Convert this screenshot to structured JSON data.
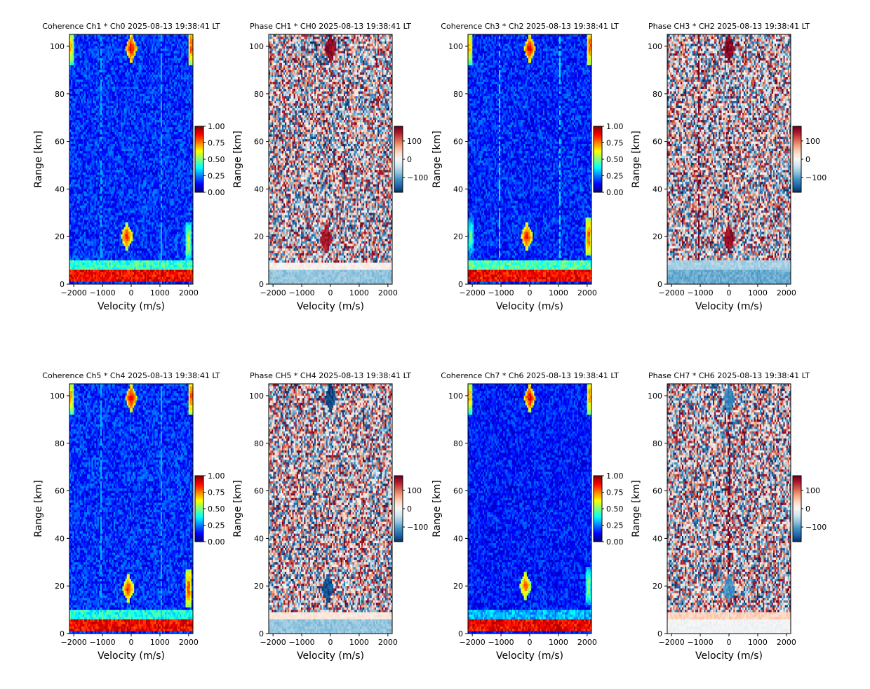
{
  "figure": {
    "background": "#ffffff"
  },
  "chart_data": [
    {
      "type": "heatmap",
      "kind": "coherence",
      "colormap": "jet",
      "title": "Coherence Ch1 * Ch0 2025-08-13 19:38:41 LT",
      "xlabel": "Velocity (m/s)",
      "ylabel": "Range [km]",
      "xlim": [
        -2150,
        2150
      ],
      "ylim": [
        0,
        105
      ],
      "xticks": [
        -2000,
        -1000,
        0,
        1000,
        2000
      ],
      "xtick_labels": [
        "−2000",
        "−1000",
        "0",
        "1000",
        "2000"
      ],
      "yticks": [
        0,
        20,
        40,
        60,
        80,
        100
      ],
      "ytick_labels": [
        "0",
        "20",
        "40",
        "60",
        "80",
        "100"
      ],
      "colorbar": {
        "range": [
          0,
          1
        ],
        "ticks": [
          0,
          0.25,
          0.5,
          0.75,
          1
        ],
        "labels": [
          "0.00",
          "0.25",
          "0.50",
          "0.75",
          "1.00"
        ]
      },
      "features": [
        {
          "v": 0,
          "r": 99,
          "value": 0.95,
          "shape": "diamond"
        },
        {
          "v": -150,
          "r": 20,
          "value": 0.9,
          "shape": "diamond"
        },
        {
          "v": 2100,
          "r": 100,
          "value": 0.85,
          "shape": "edge"
        },
        {
          "v": -2100,
          "r": 100,
          "value": 0.75,
          "shape": "edge"
        },
        {
          "v": 2000,
          "r": 18,
          "value": 0.65,
          "shape": "edge"
        }
      ],
      "bands": [
        {
          "r0": 1,
          "r1": 6,
          "value": 0.88
        },
        {
          "r0": 6,
          "r1": 10,
          "value": 0.42
        }
      ],
      "stripes": [
        {
          "v": -1050,
          "value": 0.3
        },
        {
          "v": 1050,
          "value": 0.3
        }
      ],
      "noise": {
        "base": 0.13,
        "spread": 0.12
      }
    },
    {
      "type": "heatmap",
      "kind": "phase",
      "colormap": "RdBu_r",
      "title": "Phase CH1 * CH0 2025-08-13 19:38:41 LT",
      "xlabel": "Velocity (m/s)",
      "ylabel": "Range [km]",
      "xlim": [
        -2150,
        2150
      ],
      "ylim": [
        0,
        105
      ],
      "xticks": [
        -2000,
        -1000,
        0,
        1000,
        2000
      ],
      "xtick_labels": [
        "−2000",
        "−1000",
        "0",
        "1000",
        "2000"
      ],
      "yticks": [
        0,
        20,
        40,
        60,
        80,
        100
      ],
      "ytick_labels": [
        "0",
        "20",
        "40",
        "60",
        "80",
        "100"
      ],
      "colorbar": {
        "range": [
          -180,
          180
        ],
        "ticks": [
          -100,
          0,
          100
        ],
        "labels": [
          "−100",
          "0",
          "100"
        ]
      },
      "features": [
        {
          "v": 0,
          "r": 99,
          "value": 160,
          "shape": "diamond"
        },
        {
          "v": -150,
          "r": 19,
          "value": 150,
          "shape": "diamond"
        }
      ],
      "bands": [
        {
          "r0": 0,
          "r1": 6,
          "value": -70
        },
        {
          "r0": 6,
          "r1": 9,
          "value": 10
        }
      ],
      "stripes": [],
      "noise": {
        "base": 0,
        "spread": 180
      }
    },
    {
      "type": "heatmap",
      "kind": "coherence",
      "colormap": "jet",
      "title": "Coherence Ch3 * Ch2 2025-08-13 19:38:41 LT",
      "xlabel": "Velocity (m/s)",
      "ylabel": "Range [km]",
      "xlim": [
        -2150,
        2150
      ],
      "ylim": [
        0,
        105
      ],
      "xticks": [
        -2000,
        -1000,
        0,
        1000,
        2000
      ],
      "xtick_labels": [
        "−2000",
        "−1000",
        "0",
        "1000",
        "2000"
      ],
      "yticks": [
        0,
        20,
        40,
        60,
        80,
        100
      ],
      "ytick_labels": [
        "0",
        "20",
        "40",
        "60",
        "80",
        "100"
      ],
      "colorbar": {
        "range": [
          0,
          1
        ],
        "ticks": [
          0,
          0.25,
          0.5,
          0.75,
          1
        ],
        "labels": [
          "0.00",
          "0.25",
          "0.50",
          "0.75",
          "1.00"
        ]
      },
      "features": [
        {
          "v": 0,
          "r": 99,
          "value": 0.95,
          "shape": "diamond"
        },
        {
          "v": -100,
          "r": 20,
          "value": 0.92,
          "shape": "diamond"
        },
        {
          "v": 2100,
          "r": 100,
          "value": 0.85,
          "shape": "edge"
        },
        {
          "v": -2100,
          "r": 100,
          "value": 0.75,
          "shape": "edge"
        },
        {
          "v": 2050,
          "r": 20,
          "value": 0.85,
          "shape": "edge"
        },
        {
          "v": -2050,
          "r": 20,
          "value": 0.55,
          "shape": "edge"
        }
      ],
      "bands": [
        {
          "r0": 1,
          "r1": 6,
          "value": 0.88
        },
        {
          "r0": 6,
          "r1": 10,
          "value": 0.45
        }
      ],
      "stripes": [
        {
          "v": -1050,
          "value": 0.35
        },
        {
          "v": 1050,
          "value": 0.35
        }
      ],
      "noise": {
        "base": 0.12,
        "spread": 0.12
      }
    },
    {
      "type": "heatmap",
      "kind": "phase",
      "colormap": "RdBu_r",
      "title": "Phase CH3 * CH2 2025-08-13 19:38:41 LT",
      "xlabel": "Velocity (m/s)",
      "ylabel": "Range [km]",
      "xlim": [
        -2150,
        2150
      ],
      "ylim": [
        0,
        105
      ],
      "xticks": [
        -2000,
        -1000,
        0,
        1000,
        2000
      ],
      "xtick_labels": [
        "−2000",
        "−1000",
        "0",
        "1000",
        "2000"
      ],
      "yticks": [
        0,
        20,
        40,
        60,
        80,
        100
      ],
      "ytick_labels": [
        "0",
        "20",
        "40",
        "60",
        "80",
        "100"
      ],
      "colorbar": {
        "range": [
          -180,
          180
        ],
        "ticks": [
          -100,
          0,
          100
        ],
        "labels": [
          "−100",
          "0",
          "100"
        ]
      },
      "features": [
        {
          "v": 0,
          "r": 99,
          "value": 165,
          "shape": "diamond"
        },
        {
          "v": 0,
          "r": 19,
          "value": 160,
          "shape": "diamond"
        }
      ],
      "bands": [
        {
          "r0": 0,
          "r1": 6,
          "value": -90
        },
        {
          "r0": 6,
          "r1": 10,
          "value": -60
        }
      ],
      "stripes": [
        {
          "v": -1050,
          "value": 170
        }
      ],
      "noise": {
        "base": 0,
        "spread": 180
      }
    },
    {
      "type": "heatmap",
      "kind": "coherence",
      "colormap": "jet",
      "title": "Coherence Ch5 * Ch4 2025-08-13 19:38:41 LT",
      "xlabel": "Velocity (m/s)",
      "ylabel": "Range [km]",
      "xlim": [
        -2150,
        2150
      ],
      "ylim": [
        0,
        105
      ],
      "xticks": [
        -2000,
        -1000,
        0,
        1000,
        2000
      ],
      "xtick_labels": [
        "−2000",
        "−1000",
        "0",
        "1000",
        "2000"
      ],
      "yticks": [
        0,
        20,
        40,
        60,
        80,
        100
      ],
      "ytick_labels": [
        "0",
        "20",
        "40",
        "60",
        "80",
        "100"
      ],
      "colorbar": {
        "range": [
          0,
          1
        ],
        "ticks": [
          0,
          0.25,
          0.5,
          0.75,
          1
        ],
        "labels": [
          "0.00",
          "0.25",
          "0.50",
          "0.75",
          "1.00"
        ]
      },
      "features": [
        {
          "v": 0,
          "r": 99,
          "value": 0.95,
          "shape": "diamond"
        },
        {
          "v": -100,
          "r": 19,
          "value": 0.9,
          "shape": "diamond"
        },
        {
          "v": 2100,
          "r": 100,
          "value": 0.85,
          "shape": "edge"
        },
        {
          "v": -2100,
          "r": 100,
          "value": 0.75,
          "shape": "edge"
        },
        {
          "v": 2000,
          "r": 19,
          "value": 0.85,
          "shape": "edge"
        }
      ],
      "bands": [
        {
          "r0": 1,
          "r1": 6,
          "value": 0.88
        },
        {
          "r0": 6,
          "r1": 10,
          "value": 0.4
        }
      ],
      "stripes": [
        {
          "v": -1050,
          "value": 0.3
        },
        {
          "v": 1050,
          "value": 0.3
        }
      ],
      "noise": {
        "base": 0.13,
        "spread": 0.12
      }
    },
    {
      "type": "heatmap",
      "kind": "phase",
      "colormap": "RdBu_r",
      "title": "Phase CH5 * CH4 2025-08-13 19:38:41 LT",
      "xlabel": "Velocity (m/s)",
      "ylabel": "Range [km]",
      "xlim": [
        -2150,
        2150
      ],
      "ylim": [
        0,
        105
      ],
      "xticks": [
        -2000,
        -1000,
        0,
        1000,
        2000
      ],
      "xtick_labels": [
        "−2000",
        "−1000",
        "0",
        "1000",
        "2000"
      ],
      "yticks": [
        0,
        20,
        40,
        60,
        80,
        100
      ],
      "ytick_labels": [
        "0",
        "20",
        "40",
        "60",
        "80",
        "100"
      ],
      "colorbar": {
        "range": [
          -180,
          180
        ],
        "ticks": [
          -100,
          0,
          100
        ],
        "labels": [
          "−100",
          "0",
          "100"
        ]
      },
      "features": [
        {
          "v": 0,
          "r": 99,
          "value": -165,
          "shape": "diamond"
        },
        {
          "v": -100,
          "r": 19,
          "value": -160,
          "shape": "diamond"
        }
      ],
      "bands": [
        {
          "r0": 0,
          "r1": 6,
          "value": -70
        },
        {
          "r0": 6,
          "r1": 9,
          "value": 20
        }
      ],
      "stripes": [],
      "noise": {
        "base": 0,
        "spread": 180
      }
    },
    {
      "type": "heatmap",
      "kind": "coherence",
      "colormap": "jet",
      "title": "Coherence Ch7 * Ch6 2025-08-13 19:38:41 LT",
      "xlabel": "Velocity (m/s)",
      "ylabel": "Range [km]",
      "xlim": [
        -2150,
        2150
      ],
      "ylim": [
        0,
        105
      ],
      "xticks": [
        -2000,
        -1000,
        0,
        1000,
        2000
      ],
      "xtick_labels": [
        "−2000",
        "−1000",
        "0",
        "1000",
        "2000"
      ],
      "yticks": [
        0,
        20,
        40,
        60,
        80,
        100
      ],
      "ytick_labels": [
        "0",
        "20",
        "40",
        "60",
        "80",
        "100"
      ],
      "colorbar": {
        "range": [
          0,
          1
        ],
        "ticks": [
          0,
          0.25,
          0.5,
          0.75,
          1
        ],
        "labels": [
          "0.00",
          "0.25",
          "0.50",
          "0.75",
          "1.00"
        ]
      },
      "features": [
        {
          "v": 0,
          "r": 99,
          "value": 0.95,
          "shape": "diamond"
        },
        {
          "v": -150,
          "r": 20,
          "value": 0.85,
          "shape": "diamond"
        },
        {
          "v": 2100,
          "r": 100,
          "value": 0.8,
          "shape": "edge"
        },
        {
          "v": -2100,
          "r": 100,
          "value": 0.75,
          "shape": "edge"
        },
        {
          "v": 2050,
          "r": 20,
          "value": 0.6,
          "shape": "edge"
        }
      ],
      "bands": [
        {
          "r0": 1,
          "r1": 6,
          "value": 0.88
        },
        {
          "r0": 6,
          "r1": 10,
          "value": 0.3
        }
      ],
      "stripes": [],
      "noise": {
        "base": 0.11,
        "spread": 0.11
      }
    },
    {
      "type": "heatmap",
      "kind": "phase",
      "colormap": "RdBu_r",
      "title": "Phase CH7 * CH6 2025-08-13 19:38:41 LT",
      "xlabel": "Velocity (m/s)",
      "ylabel": "Range [km]",
      "xlim": [
        -2150,
        2150
      ],
      "ylim": [
        0,
        105
      ],
      "xticks": [
        -2000,
        -1000,
        0,
        1000,
        2000
      ],
      "xtick_labels": [
        "−2000",
        "−1000",
        "0",
        "1000",
        "2000"
      ],
      "yticks": [
        0,
        20,
        40,
        60,
        80,
        100
      ],
      "ytick_labels": [
        "0",
        "20",
        "40",
        "60",
        "80",
        "100"
      ],
      "colorbar": {
        "range": [
          -180,
          180
        ],
        "ticks": [
          -100,
          0,
          100
        ],
        "labels": [
          "−100",
          "0",
          "100"
        ]
      },
      "features": [
        {
          "v": 0,
          "r": 99,
          "value": -120,
          "shape": "diamond"
        },
        {
          "v": 0,
          "r": 19,
          "value": -110,
          "shape": "diamond"
        }
      ],
      "bands": [
        {
          "r0": 0,
          "r1": 6,
          "value": -5
        },
        {
          "r0": 6,
          "r1": 9,
          "value": 40
        }
      ],
      "stripes": [
        {
          "v": 0,
          "value": 170
        }
      ],
      "noise": {
        "base": 0,
        "spread": 180
      }
    }
  ]
}
